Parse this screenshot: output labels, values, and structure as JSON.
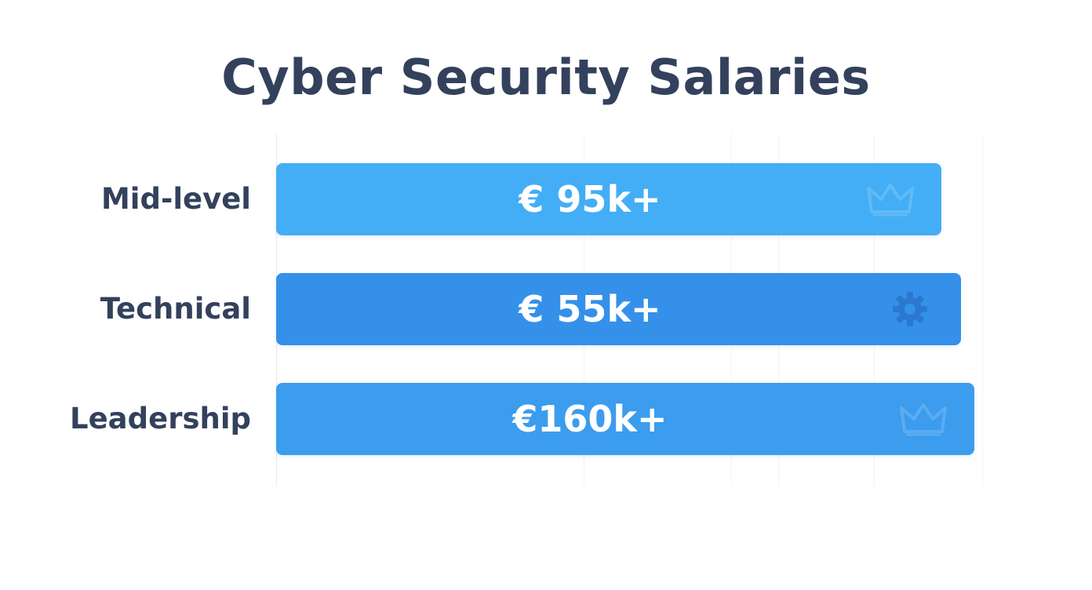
{
  "chart_data": {
    "type": "bar",
    "orientation": "horizontal",
    "title": "Cyber Security Salaries",
    "categories": [
      "Mid-level",
      "Technical",
      "Leadership"
    ],
    "values": [
      95,
      55,
      160
    ],
    "value_labels": [
      "€ 95k+",
      "€ 55k+",
      "€160k+"
    ],
    "bar_colors": [
      "#43aef5",
      "#3590ea",
      "#3c9cee"
    ],
    "bar_icons": [
      "crown-icon",
      "gear-icon",
      "crown-icon"
    ],
    "grid": true,
    "legend": "none"
  }
}
